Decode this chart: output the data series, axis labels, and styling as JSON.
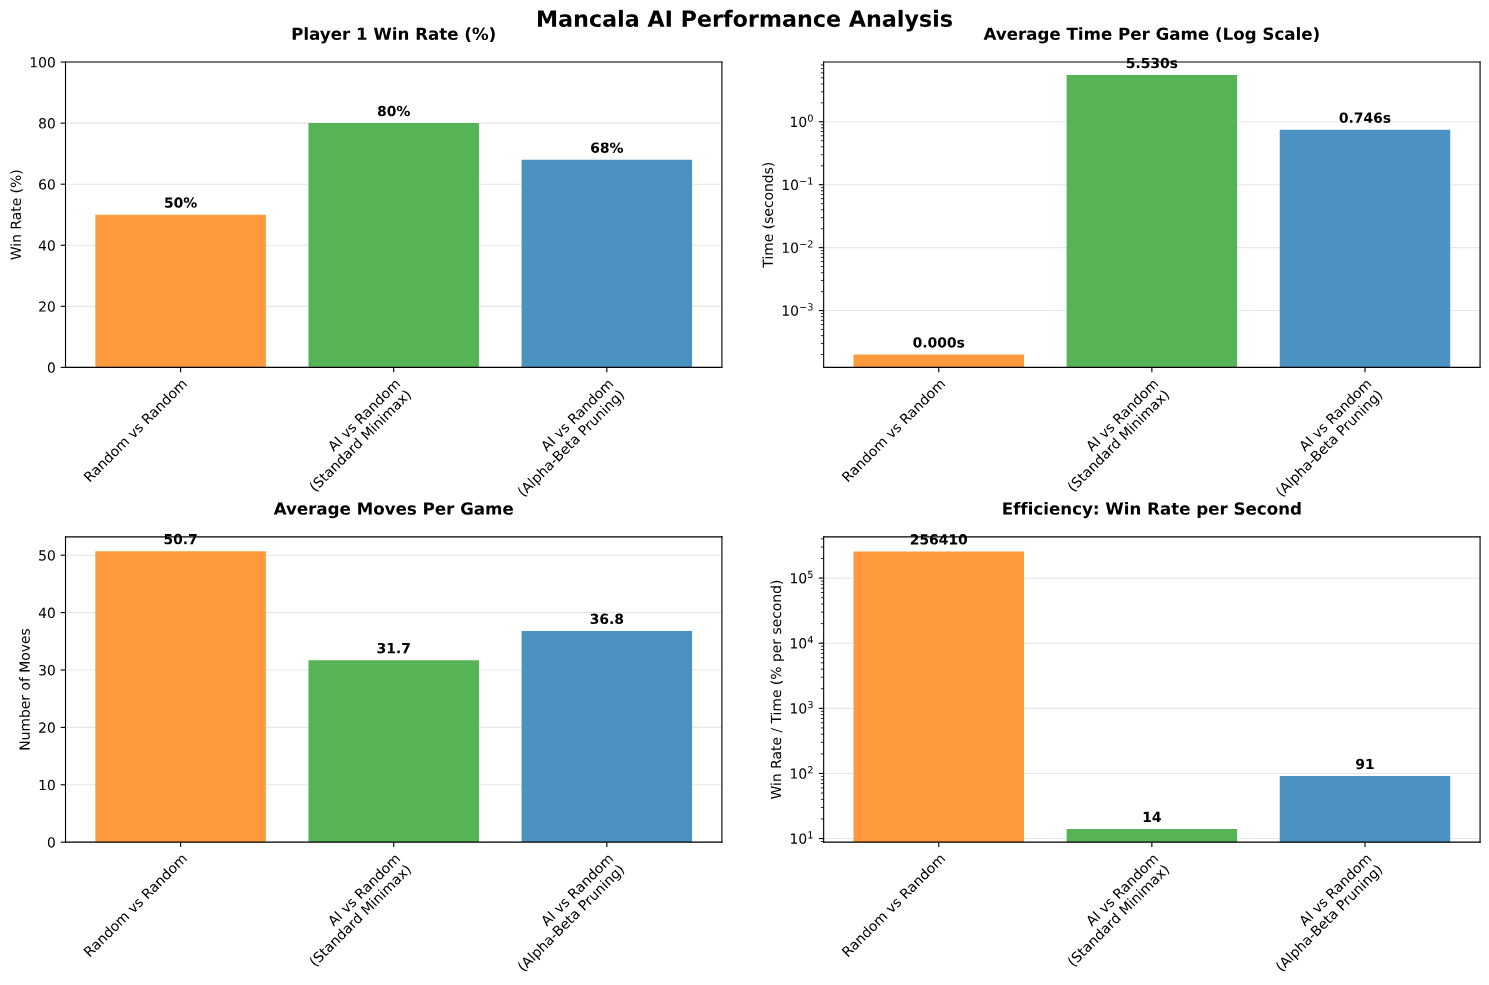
{
  "chart_data": [
    {
      "type": "bar",
      "title": "Player 1 Win Rate (%)",
      "annotations": [
        "Mancala AI Performance Analysis"
      ],
      "ylabel": "Win Rate (%)",
      "categories": [
        "Random vs Random",
        "AI vs Random\n(Standard Minimax)",
        "AI vs Random\n(Alpha-Beta Pruning)"
      ],
      "values": [
        50,
        80,
        68
      ],
      "value_labels": [
        "50%",
        "80%",
        "68%"
      ],
      "colors": [
        "#ff993e",
        "#56b356",
        "#4b92c3"
      ],
      "ylim": [
        0,
        100
      ],
      "yticks": [
        0,
        20,
        40,
        60,
        80,
        100
      ],
      "grid": "y"
    },
    {
      "type": "bar",
      "title": "Average Time Per Game (Log Scale)",
      "ylabel": "Time (seconds)",
      "log": "y",
      "categories": [
        "Random vs Random",
        "AI vs Random\n(Standard Minimax)",
        "AI vs Random\n(Alpha-Beta Pruning)"
      ],
      "values": [
        0.0002,
        5.53,
        0.746
      ],
      "value_labels": [
        "0.000s",
        "5.530s",
        "0.746s"
      ],
      "colors": [
        "#ff993e",
        "#56b356",
        "#4b92c3"
      ],
      "ylim": [
        0.000125,
        8.9
      ],
      "yticks": [
        {
          "value": 0.001,
          "label": "10$^{−3}$"
        },
        {
          "value": 0.01,
          "label": "10$^{−2}$"
        },
        {
          "value": 0.1,
          "label": "10$^{−1}$"
        },
        {
          "value": 1,
          "label": "10$^{0}$"
        }
      ],
      "grid": "y"
    },
    {
      "type": "bar",
      "title": "Average Moves Per Game",
      "ylabel": "Number of Moves",
      "categories": [
        "Random vs Random",
        "AI vs Random\n(Standard Minimax)",
        "AI vs Random\n(Alpha-Beta Pruning)"
      ],
      "values": [
        50.7,
        31.7,
        36.8
      ],
      "data_labels": true,
      "colors": [
        "#ff993e",
        "#56b356",
        "#4b92c3"
      ],
      "ylim": [
        0,
        53.2
      ],
      "yticks": [
        0,
        10,
        20,
        30,
        40,
        50
      ],
      "grid": "y"
    },
    {
      "type": "bar",
      "title": "Efficiency: Win Rate per Second",
      "ylabel": "Win Rate / Time (% per second)",
      "log": "y",
      "categories": [
        "Random vs Random",
        "AI vs Random\n(Standard Minimax)",
        "AI vs Random\n(Alpha-Beta Pruning)"
      ],
      "values": [
        256410,
        14,
        91
      ],
      "data_labels": true,
      "colors": [
        "#ff993e",
        "#56b356",
        "#4b92c3"
      ],
      "ylim": [
        8.8,
        430000
      ],
      "yticks": [
        {
          "value": 10,
          "label": "10$^{1}$"
        },
        {
          "value": 100,
          "label": "10$^{2}$"
        },
        {
          "value": 1000,
          "label": "10$^{3}$"
        },
        {
          "value": 10000,
          "label": "10$^{4}$"
        },
        {
          "value": 100000,
          "label": "10$^{5}$"
        }
      ],
      "grid": "y"
    }
  ]
}
